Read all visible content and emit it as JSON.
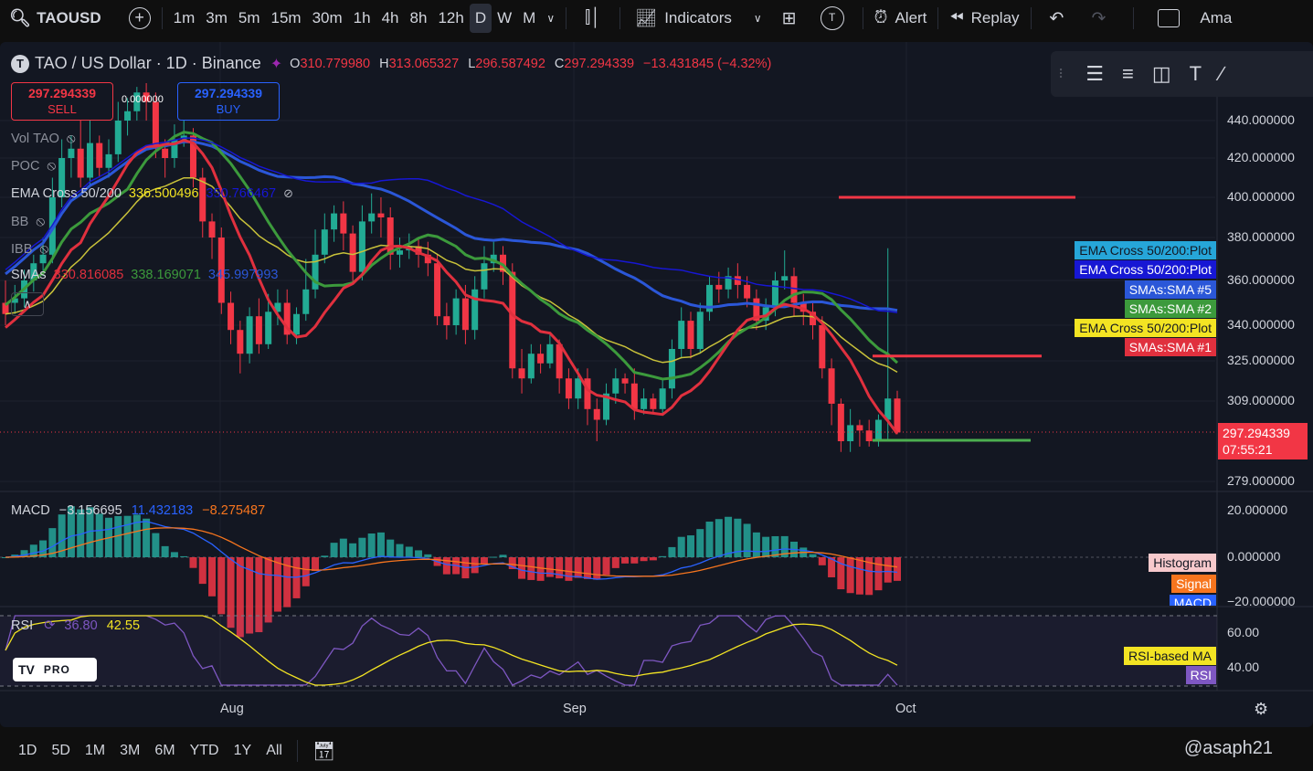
{
  "toolbar": {
    "symbol": "TAOUSD",
    "timeframes": [
      "1m",
      "3m",
      "5m",
      "15m",
      "30m",
      "1h",
      "4h",
      "8h",
      "12h",
      "D",
      "W",
      "M"
    ],
    "active_timeframe": "D",
    "indicators_label": "Indicators",
    "alert_label": "Alert",
    "replay_label": "Replay",
    "account_label": "Ama",
    "icons": [
      "search-icon",
      "add-symbol-icon",
      "candle-style-icon",
      "indicators-icon",
      "layouts-icon",
      "alert-icon",
      "replay-icon",
      "undo-icon",
      "redo-icon"
    ]
  },
  "legend": {
    "symbol_initial": "T",
    "title": "TAO / US Dollar · 1D · Binance",
    "o_label": "O",
    "o_value": "310.779980",
    "h_label": "H",
    "h_value": "313.065327",
    "l_label": "L",
    "l_value": "296.587492",
    "c_label": "C",
    "c_value": "297.294339",
    "change": "−13.431845 (−4.32%)"
  },
  "trade": {
    "sell_price": "297.294339",
    "sell_label": "SELL",
    "buy_price": "297.294339",
    "buy_label": "BUY",
    "spread": "0.000000"
  },
  "indicators": [
    {
      "name": "Vol",
      "suffix": "TAO"
    },
    {
      "name": "POC"
    },
    {
      "name": "EMA Cross 50/200",
      "v1": "336.500496",
      "v2": "350.766467"
    },
    {
      "name": "BB"
    },
    {
      "name": "IBB"
    },
    {
      "name": "SMAs",
      "v1": "330.816085",
      "v2": "338.169071",
      "v3": "345.997993"
    }
  ],
  "price_axis": {
    "labels": [
      "440.000000",
      "420.000000",
      "400.000000",
      "380.000000",
      "360.000000",
      "340.000000",
      "325.000000",
      "309.000000",
      "279.000000"
    ],
    "current_price": "297.294339",
    "countdown": "07:55:21"
  },
  "series_tags": [
    {
      "label": "EMA Cross 50/200:Plot",
      "color": "#26a6d9",
      "text_color": "#131722"
    },
    {
      "label": "EMA Cross 50/200:Plot",
      "color": "#1717d4",
      "text_color": "#ffffff"
    },
    {
      "label": "SMAs:SMA #5",
      "color": "#2b57d8",
      "text_color": "#ffffff"
    },
    {
      "label": "SMAs:SMA #2",
      "color": "#3c9a3c",
      "text_color": "#ffffff"
    },
    {
      "label": "EMA Cross 50/200:Plot",
      "color": "#f3e423",
      "text_color": "#131722"
    },
    {
      "label": "SMAs:SMA #1",
      "color": "#e0303e",
      "text_color": "#ffffff"
    }
  ],
  "macd": {
    "label": "MACD",
    "value": "−3.156695",
    "signal_value": "11.432183",
    "hist_value": "−8.275487",
    "axis": [
      "20.000000",
      "0.000000",
      "−20.000000"
    ],
    "tags": [
      {
        "label": "Histogram",
        "color": "#f7c9cc",
        "text_color": "#131722"
      },
      {
        "label": "Signal",
        "color": "#f7751e",
        "text_color": "#ffffff"
      },
      {
        "label": "MACD",
        "color": "#2962ff",
        "text_color": "#ffffff"
      }
    ]
  },
  "rsi": {
    "label": "RSI",
    "value": "36.80",
    "ma_value": "42.55",
    "axis": [
      "60.00",
      "40.00"
    ],
    "tags": [
      {
        "label": "RSI-based MA",
        "color": "#f3e423",
        "text_color": "#131722"
      },
      {
        "label": "RSI",
        "color": "#7e57c2",
        "text_color": "#ffffff"
      }
    ]
  },
  "time_axis": [
    "Aug",
    "Sep",
    "Oct"
  ],
  "logo": {
    "brand": "TV",
    "tier": "PRO"
  },
  "bottom": {
    "ranges": [
      "1D",
      "5D",
      "1M",
      "3M",
      "6M",
      "YTD",
      "1Y",
      "All"
    ],
    "watermark": "@asaph21"
  },
  "colors": {
    "up": "#22ab94",
    "down": "#f23645",
    "background": "#131722",
    "ema50": "#c9c23a",
    "ema200": "#1717d4",
    "sma1": "#e0303e",
    "sma2": "#3c9a3c",
    "sma5": "#2b57d8"
  },
  "chart_data": {
    "type": "candlestick",
    "candles": [
      [
        350,
        345,
        340,
        360
      ],
      [
        350,
        352,
        345,
        358
      ],
      [
        352,
        360,
        348,
        365
      ],
      [
        360,
        368,
        355,
        372
      ],
      [
        368,
        372,
        362,
        380
      ],
      [
        372,
        400,
        368,
        410
      ],
      [
        400,
        420,
        395,
        430
      ],
      [
        420,
        425,
        410,
        432
      ],
      [
        425,
        410,
        405,
        440
      ],
      [
        410,
        428,
        405,
        440
      ],
      [
        428,
        415,
        410,
        432
      ],
      [
        415,
        422,
        410,
        430
      ],
      [
        422,
        440,
        418,
        450
      ],
      [
        440,
        445,
        432,
        452
      ],
      [
        445,
        455,
        440,
        458
      ],
      [
        455,
        450,
        440,
        460
      ],
      [
        450,
        425,
        420,
        455
      ],
      [
        425,
        420,
        410,
        430
      ],
      [
        420,
        430,
        415,
        438
      ],
      [
        430,
        432,
        426,
        440
      ],
      [
        432,
        410,
        405,
        436
      ],
      [
        410,
        388,
        380,
        415
      ],
      [
        388,
        380,
        370,
        392
      ],
      [
        380,
        350,
        345,
        385
      ],
      [
        350,
        338,
        332,
        355
      ],
      [
        338,
        328,
        320,
        342
      ],
      [
        328,
        344,
        324,
        348
      ],
      [
        344,
        332,
        328,
        352
      ],
      [
        332,
        346,
        330,
        354
      ],
      [
        346,
        350,
        340,
        356
      ],
      [
        350,
        336,
        332,
        356
      ],
      [
        336,
        345,
        332,
        348
      ],
      [
        345,
        356,
        342,
        370
      ],
      [
        356,
        372,
        352,
        384
      ],
      [
        372,
        384,
        368,
        392
      ],
      [
        384,
        392,
        378,
        396
      ],
      [
        392,
        382,
        374,
        398
      ],
      [
        382,
        364,
        358,
        386
      ],
      [
        364,
        388,
        360,
        396
      ],
      [
        388,
        392,
        382,
        402
      ],
      [
        392,
        390,
        380,
        400
      ],
      [
        390,
        372,
        365,
        395
      ],
      [
        372,
        374,
        366,
        380
      ],
      [
        374,
        376,
        370,
        382
      ],
      [
        376,
        372,
        366,
        380
      ],
      [
        372,
        368,
        362,
        378
      ],
      [
        368,
        344,
        340,
        372
      ],
      [
        344,
        340,
        334,
        350
      ],
      [
        340,
        352,
        336,
        356
      ],
      [
        352,
        338,
        332,
        358
      ],
      [
        338,
        356,
        334,
        362
      ],
      [
        356,
        368,
        352,
        376
      ],
      [
        368,
        372,
        364,
        378
      ],
      [
        372,
        364,
        358,
        376
      ],
      [
        364,
        322,
        318,
        368
      ],
      [
        322,
        318,
        312,
        330
      ],
      [
        318,
        328,
        316,
        332
      ],
      [
        328,
        324,
        320,
        332
      ],
      [
        324,
        332,
        322,
        336
      ],
      [
        332,
        318,
        312,
        334
      ],
      [
        318,
        310,
        306,
        322
      ],
      [
        310,
        318,
        306,
        322
      ],
      [
        318,
        306,
        300,
        322
      ],
      [
        306,
        302,
        294,
        310
      ],
      [
        302,
        312,
        300,
        316
      ],
      [
        312,
        318,
        308,
        322
      ],
      [
        318,
        316,
        312,
        320
      ],
      [
        316,
        306,
        302,
        322
      ],
      [
        306,
        310,
        304,
        314
      ],
      [
        310,
        306,
        304,
        312
      ],
      [
        306,
        314,
        304,
        318
      ],
      [
        314,
        330,
        310,
        334
      ],
      [
        330,
        342,
        326,
        348
      ],
      [
        342,
        330,
        326,
        346
      ],
      [
        330,
        346,
        328,
        350
      ],
      [
        346,
        358,
        342,
        362
      ],
      [
        358,
        356,
        350,
        364
      ],
      [
        356,
        362,
        352,
        366
      ],
      [
        362,
        358,
        352,
        368
      ],
      [
        358,
        352,
        348,
        362
      ],
      [
        352,
        342,
        338,
        356
      ],
      [
        342,
        348,
        338,
        352
      ],
      [
        348,
        360,
        344,
        364
      ],
      [
        360,
        362,
        356,
        374
      ],
      [
        362,
        350,
        344,
        366
      ],
      [
        350,
        346,
        340,
        354
      ],
      [
        346,
        340,
        334,
        350
      ],
      [
        340,
        322,
        318,
        344
      ],
      [
        322,
        308,
        300,
        326
      ],
      [
        308,
        294,
        290,
        310
      ],
      [
        294,
        300,
        290,
        306
      ],
      [
        300,
        298,
        292,
        302
      ],
      [
        298,
        294,
        292,
        302
      ],
      [
        294,
        302,
        292,
        304
      ],
      [
        302,
        310,
        294,
        375
      ],
      [
        310,
        297.29,
        296.59,
        313.07
      ]
    ],
    "levels": [
      400,
      327,
      298
    ],
    "current": 297.294339
  }
}
